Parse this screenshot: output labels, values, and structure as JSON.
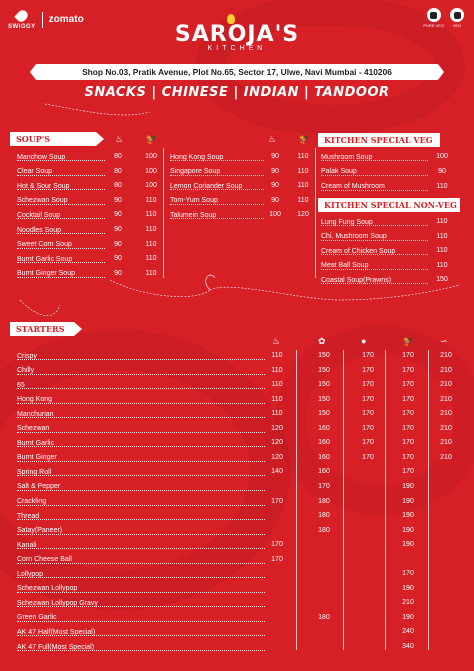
{
  "header": {
    "swiggy": "SWIGGY",
    "zomato": "zomato",
    "brand": "SAROJA'S",
    "brand_sub": "KITCHEN",
    "address": "Shop No.03, Pratik Avenue,  Plot No.65, Sector 17, Ulwe, Navi Mumbai - 410206",
    "tagline": "SNACKS | CHINESE | INDIAN | TANDOOR",
    "icon_labels": [
      "PURE VEG",
      "VEG"
    ]
  },
  "soups": {
    "title": "SOUP'S",
    "col_icons": [
      "veg-icon",
      "chicken-icon"
    ],
    "left_items": [
      {
        "name": "Manchow Soup",
        "prices": [
          "80",
          "100"
        ]
      },
      {
        "name": "Clear Soup",
        "prices": [
          "80",
          "100"
        ]
      },
      {
        "name": "Hot & Sour Soup",
        "prices": [
          "80",
          "100"
        ]
      },
      {
        "name": "Schezwan Soup",
        "prices": [
          "90",
          "110"
        ]
      },
      {
        "name": "Cocktail Soup",
        "prices": [
          "90",
          "110"
        ]
      },
      {
        "name": "Noodles Soup",
        "prices": [
          "90",
          "110"
        ]
      },
      {
        "name": "Sweet Corn Soup",
        "prices": [
          "90",
          "110"
        ]
      },
      {
        "name": "Burnt Garlic Soup",
        "prices": [
          "90",
          "110"
        ]
      },
      {
        "name": "Burnt Ginger Soup",
        "prices": [
          "90",
          "110"
        ]
      }
    ],
    "right_items": [
      {
        "name": "Hong Kong Soup",
        "prices": [
          "90",
          "110"
        ]
      },
      {
        "name": "Singapore Soup",
        "prices": [
          "90",
          "110"
        ]
      },
      {
        "name": "Lemon Coriander Soup",
        "prices": [
          "90",
          "110"
        ]
      },
      {
        "name": "Tom-Yum Soup",
        "prices": [
          "90",
          "110"
        ]
      },
      {
        "name": "Talumein Soup",
        "prices": [
          "100",
          "120"
        ]
      }
    ]
  },
  "kitchen_special_veg": {
    "title": "KITCHEN SPECIAL VEG",
    "items": [
      {
        "name": "Mushroom Soup",
        "price": "100"
      },
      {
        "name": "Palak Soup",
        "price": "90"
      },
      {
        "name": "Cream of Mushroom",
        "price": "110"
      }
    ]
  },
  "kitchen_special_nonveg": {
    "title": "KITCHEN SPECIAL NON-VEG",
    "items": [
      {
        "name": "Lung Fung Soup",
        "price": "110"
      },
      {
        "name": "Chi. Mushroom Soup",
        "price": "110"
      },
      {
        "name": "Cream of Chicken Soup",
        "price": "110"
      },
      {
        "name": "Meat Ball Soup",
        "price": "110"
      },
      {
        "name": "Coastal Soup(Prawns)",
        "price": "150"
      }
    ]
  },
  "starters": {
    "title": "STARTERS",
    "col_icons": [
      "veg-icon",
      "paneer-icon",
      "mushroom-icon",
      "chicken-icon",
      "prawn-icon"
    ],
    "items": [
      {
        "name": "Crispy",
        "prices": [
          "110",
          "150",
          "170",
          "170",
          "210"
        ]
      },
      {
        "name": "Chilly",
        "prices": [
          "110",
          "150",
          "170",
          "170",
          "210"
        ]
      },
      {
        "name": "65",
        "prices": [
          "110",
          "150",
          "170",
          "170",
          "210"
        ]
      },
      {
        "name": "Hong Kong",
        "prices": [
          "110",
          "150",
          "170",
          "170",
          "210"
        ]
      },
      {
        "name": "Manchurian",
        "prices": [
          "110",
          "150",
          "170",
          "170",
          "210"
        ]
      },
      {
        "name": "Schezwan",
        "prices": [
          "120",
          "160",
          "170",
          "170",
          "210"
        ]
      },
      {
        "name": "Burnt Garlic",
        "prices": [
          "120",
          "160",
          "170",
          "170",
          "210"
        ]
      },
      {
        "name": "Burnt Ginger",
        "prices": [
          "120",
          "160",
          "170",
          "170",
          "210"
        ]
      },
      {
        "name": "Spring Roll",
        "prices": [
          "140",
          "160",
          "",
          "170",
          ""
        ]
      },
      {
        "name": "Salt & Pepper",
        "prices": [
          "",
          "170",
          "",
          "190",
          ""
        ]
      },
      {
        "name": "Crackling",
        "prices": [
          "170",
          "180",
          "",
          "190",
          ""
        ]
      },
      {
        "name": "Thread",
        "prices": [
          "",
          "180",
          "",
          "190",
          ""
        ]
      },
      {
        "name": "Satay(Paneer)",
        "prices": [
          "",
          "180",
          "",
          "190",
          ""
        ]
      },
      {
        "name": "Kanali",
        "prices": [
          "170",
          "",
          "",
          "190",
          ""
        ]
      },
      {
        "name": "Corn Cheese Ball",
        "prices": [
          "170",
          "",
          "",
          "",
          ""
        ]
      },
      {
        "name": "Lollypop",
        "prices": [
          "",
          "",
          "",
          "170",
          ""
        ]
      },
      {
        "name": "Schezwan Lollypop",
        "prices": [
          "",
          "",
          "",
          "190",
          ""
        ]
      },
      {
        "name": "Schezwan Lollypop Gravy",
        "prices": [
          "",
          "",
          "",
          "210",
          ""
        ]
      },
      {
        "name": "Green Garlic",
        "prices": [
          "",
          "180",
          "",
          "190",
          ""
        ]
      },
      {
        "name": "AK 47 Half(Most Special)",
        "prices": [
          "",
          "",
          "",
          "240",
          ""
        ]
      },
      {
        "name": "AK 47 Full(Most Special)",
        "prices": [
          "",
          "",
          "",
          "340",
          ""
        ]
      }
    ]
  },
  "colors": {
    "background": "#d71f26",
    "text": "#ffffff",
    "banner_text": "#d71f26",
    "flame": "#ffcf2b"
  }
}
